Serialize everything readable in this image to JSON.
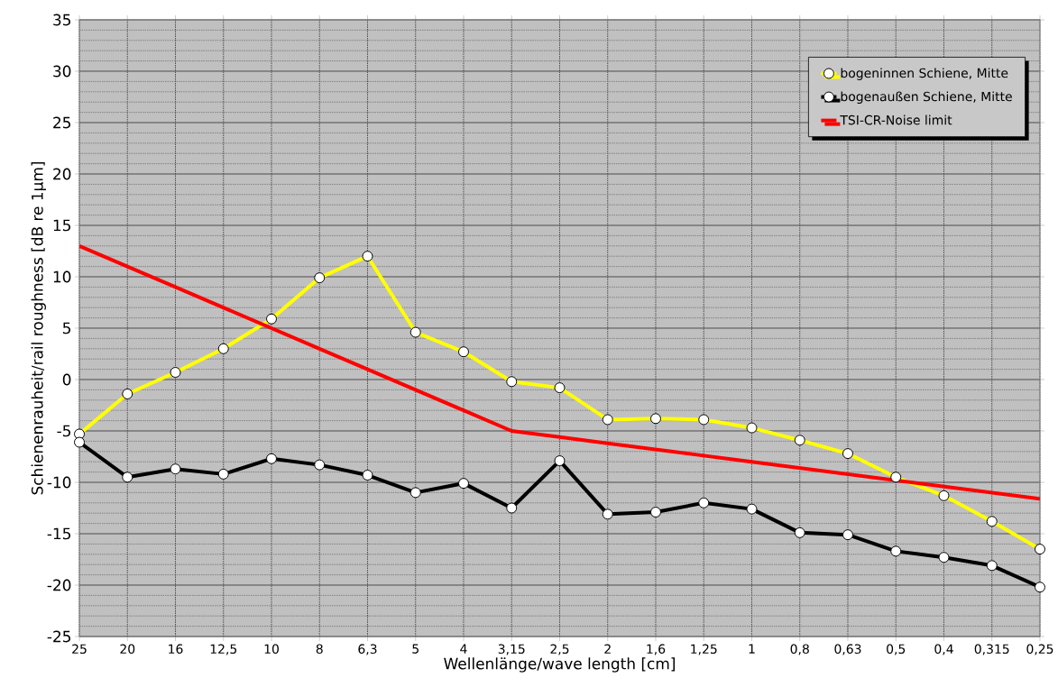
{
  "chart_data": {
    "type": "line",
    "xlabel": "Wellenlänge/wave length [cm]",
    "ylabel": "Schienenrauheit/rail roughness [dB re 1µm]",
    "categories": [
      "25",
      "20",
      "16",
      "12,5",
      "10",
      "8",
      "6,3",
      "5",
      "4",
      "3,15",
      "2,5",
      "2",
      "1,6",
      "1,25",
      "1",
      "0,8",
      "0,63",
      "0,5",
      "0,4",
      "0,315",
      "0,25"
    ],
    "series": [
      {
        "name": "bogeninnen Schiene, Mitte",
        "color": "#ffff00",
        "marker": "circle",
        "values": [
          -5.3,
          -1.4,
          0.7,
          3.0,
          5.9,
          9.9,
          12.0,
          4.6,
          2.7,
          -0.2,
          -0.8,
          -3.9,
          -3.8,
          -3.9,
          -4.7,
          -5.9,
          -7.2,
          -9.5,
          -11.3,
          -13.8,
          -16.5
        ]
      },
      {
        "name": "bogenaußen Schiene, Mitte",
        "color": "#000000",
        "marker": "circle",
        "values": [
          -6.1,
          -9.5,
          -8.7,
          -9.2,
          -7.7,
          -8.3,
          -9.3,
          -11.0,
          -10.1,
          -12.5,
          -7.9,
          -13.1,
          -12.9,
          -12.0,
          -12.6,
          -14.9,
          -15.1,
          -16.7,
          -17.3,
          -18.1,
          -20.2
        ]
      },
      {
        "name": "TSI-CR-Noise limit",
        "color": "#ff0000",
        "marker": "none",
        "values": [
          13,
          11,
          9,
          7,
          5,
          3,
          1,
          -1,
          -3,
          -5,
          -5.6,
          -6.2,
          -6.8,
          -7.4,
          -8,
          -8.6,
          -9.2,
          -9.8,
          -10.4,
          -11,
          -11.6
        ]
      }
    ],
    "ylim": [
      -25,
      35
    ],
    "yticks": [
      -25,
      -20,
      -15,
      -10,
      -5,
      0,
      5,
      10,
      15,
      20,
      25,
      30,
      35
    ],
    "grid": true,
    "legend": "top right"
  }
}
